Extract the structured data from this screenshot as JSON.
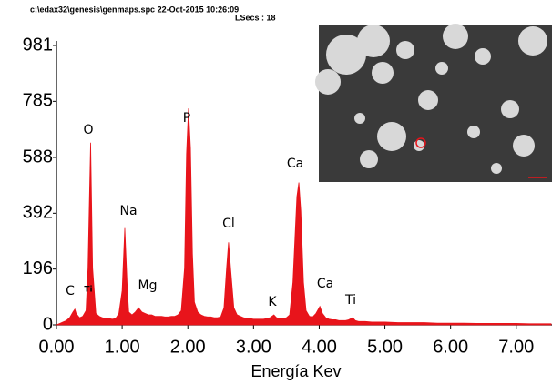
{
  "chart_data": {
    "type": "area",
    "title": "c:\\edax32\\genesis\\genmaps.spc  22-Oct-2015 10:26:09",
    "subtitle": "LSecs : 18",
    "x_label": "Energía Kev",
    "color": "#e8141b",
    "annotations": [
      "C",
      "Ti",
      "O",
      "Na",
      "Mg",
      "P",
      "Cl",
      "K",
      "Ca",
      "Ca",
      "Ti"
    ],
    "x": [
      0.0,
      0.05,
      0.1,
      0.15,
      0.2,
      0.25,
      0.28,
      0.3,
      0.35,
      0.4,
      0.45,
      0.48,
      0.52,
      0.55,
      0.6,
      0.65,
      0.7,
      0.75,
      0.8,
      0.85,
      0.9,
      0.95,
      1.0,
      1.04,
      1.08,
      1.1,
      1.15,
      1.2,
      1.25,
      1.3,
      1.35,
      1.4,
      1.45,
      1.5,
      1.55,
      1.6,
      1.65,
      1.7,
      1.75,
      1.8,
      1.85,
      1.9,
      1.95,
      1.98,
      2.01,
      2.04,
      2.07,
      2.1,
      2.15,
      2.2,
      2.25,
      2.3,
      2.35,
      2.4,
      2.45,
      2.5,
      2.55,
      2.59,
      2.62,
      2.65,
      2.7,
      2.75,
      2.8,
      2.85,
      2.9,
      2.95,
      3.0,
      3.05,
      3.1,
      3.15,
      3.2,
      3.25,
      3.31,
      3.35,
      3.4,
      3.45,
      3.5,
      3.55,
      3.6,
      3.66,
      3.69,
      3.72,
      3.76,
      3.8,
      3.85,
      3.9,
      3.95,
      4.01,
      4.05,
      4.1,
      4.15,
      4.2,
      4.25,
      4.3,
      4.35,
      4.4,
      4.45,
      4.51,
      4.55,
      4.6,
      4.7,
      4.8,
      4.9,
      5.0,
      5.2,
      5.4,
      5.6,
      5.8,
      6.0,
      6.2,
      6.4,
      6.6,
      6.8,
      7.0,
      7.2,
      7.4,
      7.53
    ],
    "values": [
      0,
      5,
      10,
      15,
      25,
      45,
      55,
      40,
      25,
      30,
      50,
      200,
      640,
      200,
      40,
      30,
      25,
      22,
      22,
      20,
      22,
      40,
      120,
      340,
      120,
      45,
      35,
      45,
      60,
      45,
      40,
      35,
      35,
      30,
      30,
      30,
      28,
      28,
      30,
      30,
      35,
      50,
      200,
      600,
      760,
      620,
      250,
      80,
      45,
      35,
      30,
      28,
      28,
      25,
      25,
      28,
      60,
      200,
      290,
      200,
      60,
      35,
      30,
      25,
      22,
      22,
      20,
      20,
      20,
      20,
      22,
      25,
      35,
      25,
      22,
      22,
      25,
      35,
      150,
      450,
      500,
      400,
      150,
      50,
      30,
      28,
      40,
      65,
      40,
      25,
      20,
      18,
      18,
      15,
      15,
      15,
      18,
      25,
      15,
      12,
      12,
      10,
      10,
      10,
      8,
      8,
      8,
      6,
      6,
      6,
      5,
      5,
      5,
      5,
      4,
      4,
      4
    ],
    "xlim": [
      0,
      7.53
    ],
    "ylim": [
      0,
      981
    ],
    "xticks": [
      {
        "value": 0,
        "label": "0.00"
      },
      {
        "value": 1,
        "label": "1.00"
      },
      {
        "value": 2,
        "label": "2.00"
      },
      {
        "value": 3,
        "label": "3.00"
      },
      {
        "value": 4,
        "label": "4.00"
      },
      {
        "value": 5,
        "label": "5.00"
      },
      {
        "value": 6,
        "label": "6.00"
      },
      {
        "value": 7,
        "label": "7.00"
      }
    ],
    "yticks": [
      0,
      196,
      392,
      588,
      785,
      981
    ]
  }
}
